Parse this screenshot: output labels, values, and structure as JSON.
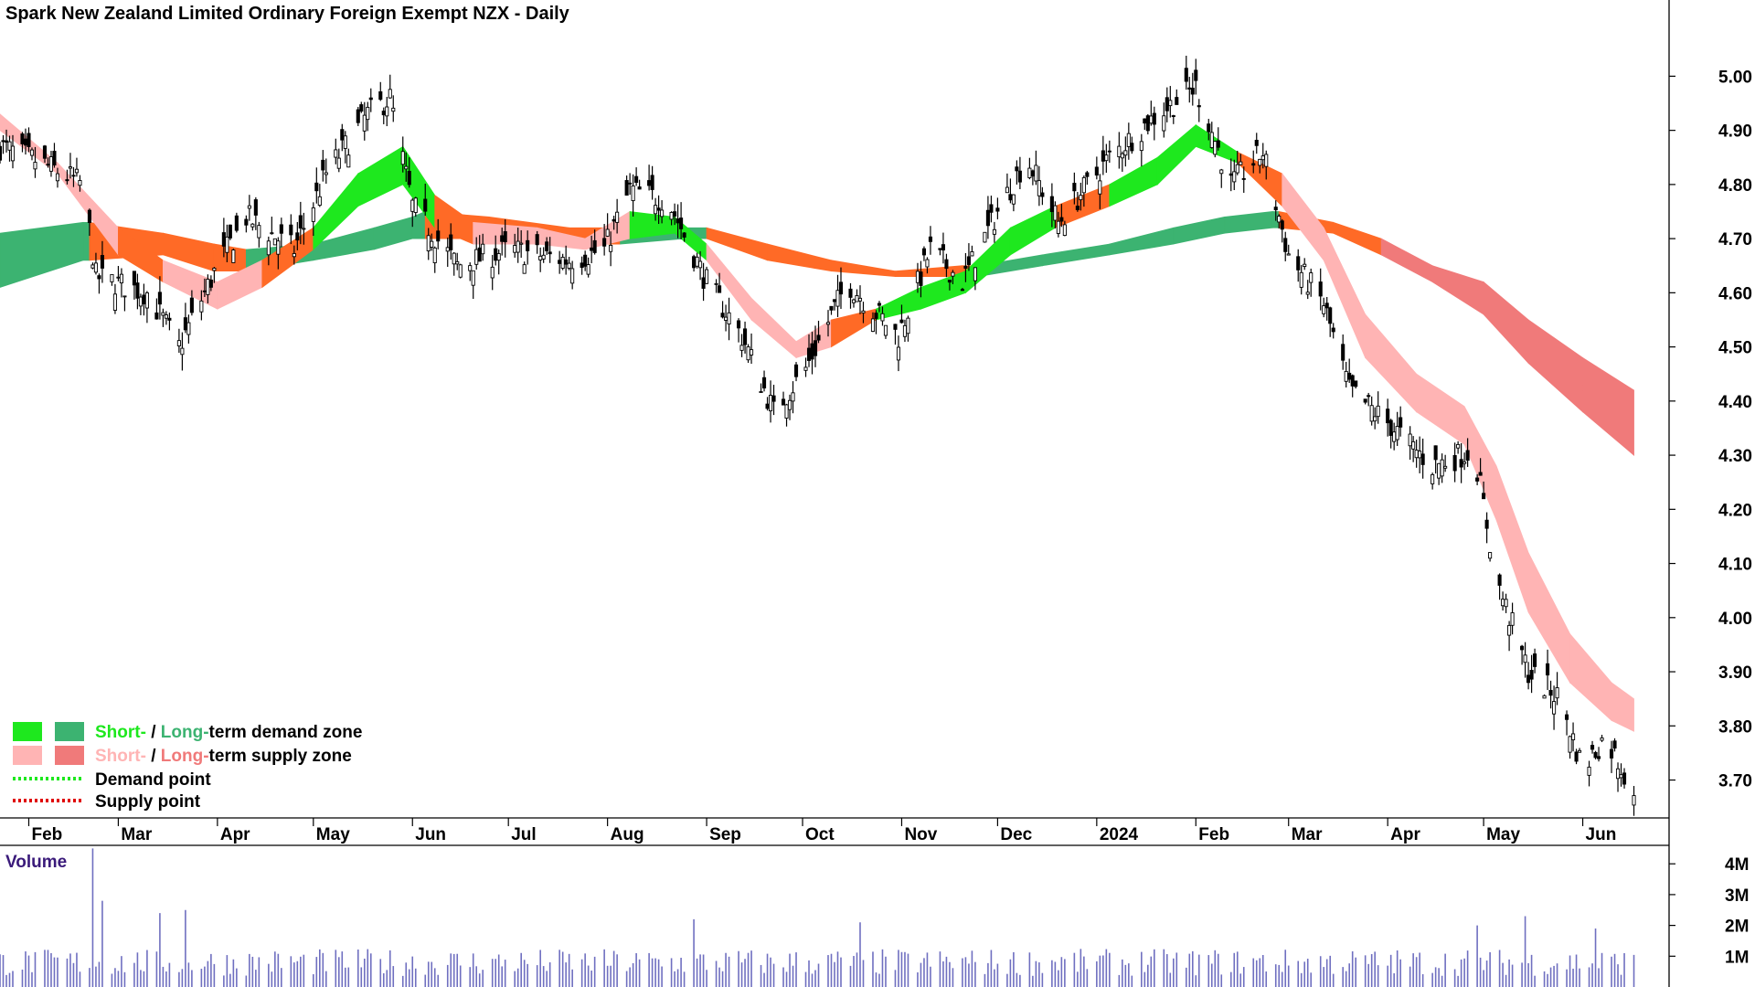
{
  "chart_data": {
    "type": "candlestick",
    "title": "Spark New Zealand Limited Ordinary Foreign Exempt NZX - Daily",
    "price_axis": {
      "min": 3.63,
      "max": 5.08,
      "ticks": [
        5.0,
        4.9,
        4.8,
        4.7,
        4.6,
        4.5,
        4.4,
        4.3,
        4.2,
        4.1,
        4.0,
        3.9,
        3.8,
        3.7
      ],
      "tick_labels": [
        "5.00",
        "4.90",
        "4.80",
        "4.70",
        "4.60",
        "4.50",
        "4.40",
        "4.30",
        "4.20",
        "4.10",
        "4.00",
        "3.90",
        "3.80",
        "3.70"
      ]
    },
    "time_axis": {
      "start": "2023-01-23",
      "end": "2024-06-28",
      "last_bar": "2024-06-17",
      "months": [
        {
          "label": "Feb",
          "date": "2023-02-01"
        },
        {
          "label": "Mar",
          "date": "2023-03-01"
        },
        {
          "label": "Apr",
          "date": "2023-04-01"
        },
        {
          "label": "May",
          "date": "2023-05-01"
        },
        {
          "label": "Jun",
          "date": "2023-06-01"
        },
        {
          "label": "Jul",
          "date": "2023-07-01"
        },
        {
          "label": "Aug",
          "date": "2023-08-01"
        },
        {
          "label": "Sep",
          "date": "2023-09-01"
        },
        {
          "label": "Oct",
          "date": "2023-10-01"
        },
        {
          "label": "Nov",
          "date": "2023-11-01"
        },
        {
          "label": "Dec",
          "date": "2023-12-01"
        },
        {
          "label": "2024",
          "date": "2024-01-01"
        },
        {
          "label": "Feb",
          "date": "2024-02-01"
        },
        {
          "label": "Mar",
          "date": "2024-03-01"
        },
        {
          "label": "Apr",
          "date": "2024-04-01"
        },
        {
          "label": "May",
          "date": "2024-05-01"
        },
        {
          "label": "Jun",
          "date": "2024-06-01"
        }
      ]
    },
    "price_path": [
      {
        "date": "2023-01-23",
        "price": 4.87
      },
      {
        "date": "2023-02-05",
        "price": 4.84
      },
      {
        "date": "2023-02-18",
        "price": 4.8
      },
      {
        "date": "2023-02-22",
        "price": 4.63
      },
      {
        "date": "2023-03-10",
        "price": 4.6
      },
      {
        "date": "2023-03-20",
        "price": 4.5
      },
      {
        "date": "2023-04-01",
        "price": 4.65
      },
      {
        "date": "2023-04-10",
        "price": 4.74
      },
      {
        "date": "2023-04-25",
        "price": 4.68
      },
      {
        "date": "2023-05-05",
        "price": 4.82
      },
      {
        "date": "2023-05-18",
        "price": 4.93
      },
      {
        "date": "2023-05-25",
        "price": 4.96
      },
      {
        "date": "2023-06-01",
        "price": 4.76
      },
      {
        "date": "2023-06-15",
        "price": 4.65
      },
      {
        "date": "2023-07-01",
        "price": 4.68
      },
      {
        "date": "2023-07-20",
        "price": 4.66
      },
      {
        "date": "2023-07-31",
        "price": 4.68
      },
      {
        "date": "2023-08-08",
        "price": 4.79
      },
      {
        "date": "2023-08-20",
        "price": 4.77
      },
      {
        "date": "2023-09-01",
        "price": 4.62
      },
      {
        "date": "2023-09-12",
        "price": 4.52
      },
      {
        "date": "2023-09-22",
        "price": 4.38
      },
      {
        "date": "2023-10-02",
        "price": 4.46
      },
      {
        "date": "2023-10-15",
        "price": 4.62
      },
      {
        "date": "2023-10-31",
        "price": 4.52
      },
      {
        "date": "2023-11-10",
        "price": 4.68
      },
      {
        "date": "2023-11-20",
        "price": 4.62
      },
      {
        "date": "2023-12-01",
        "price": 4.75
      },
      {
        "date": "2023-12-10",
        "price": 4.85
      },
      {
        "date": "2023-12-20",
        "price": 4.73
      },
      {
        "date": "2024-01-05",
        "price": 4.85
      },
      {
        "date": "2024-01-20",
        "price": 4.93
      },
      {
        "date": "2024-02-01",
        "price": 4.98
      },
      {
        "date": "2024-02-12",
        "price": 4.8
      },
      {
        "date": "2024-02-22",
        "price": 4.86
      },
      {
        "date": "2024-03-01",
        "price": 4.67
      },
      {
        "date": "2024-03-12",
        "price": 4.58
      },
      {
        "date": "2024-03-20",
        "price": 4.42
      },
      {
        "date": "2024-04-01",
        "price": 4.36
      },
      {
        "date": "2024-04-15",
        "price": 4.28
      },
      {
        "date": "2024-04-28",
        "price": 4.31
      },
      {
        "date": "2024-05-05",
        "price": 4.07
      },
      {
        "date": "2024-05-15",
        "price": 3.9
      },
      {
        "date": "2024-05-25",
        "price": 3.85
      },
      {
        "date": "2024-06-01",
        "price": 3.72
      },
      {
        "date": "2024-06-08",
        "price": 3.78
      },
      {
        "date": "2024-06-17",
        "price": 3.68
      }
    ],
    "short_term_zone": [
      {
        "date": "2023-01-23",
        "upper": 4.93,
        "lower": 4.9,
        "state": "supply-weak"
      },
      {
        "date": "2023-02-10",
        "upper": 4.84,
        "lower": 4.82,
        "state": "supply-weak"
      },
      {
        "date": "2023-03-01",
        "upper": 4.72,
        "lower": 4.67,
        "state": "supply-short"
      },
      {
        "date": "2023-03-15",
        "upper": 4.66,
        "lower": 4.62,
        "state": "supply-weak"
      },
      {
        "date": "2023-04-01",
        "upper": 4.62,
        "lower": 4.57,
        "state": "supply-weak"
      },
      {
        "date": "2023-04-15",
        "upper": 4.66,
        "lower": 4.61,
        "state": "demand-weak"
      },
      {
        "date": "2023-05-01",
        "upper": 4.72,
        "lower": 4.68,
        "state": "demand-short"
      },
      {
        "date": "2023-05-15",
        "upper": 4.82,
        "lower": 4.76,
        "state": "demand-short"
      },
      {
        "date": "2023-05-29",
        "upper": 4.87,
        "lower": 4.8,
        "state": "demand-short"
      },
      {
        "date": "2023-06-08",
        "upper": 4.78,
        "lower": 4.72,
        "state": "supply-short"
      },
      {
        "date": "2023-06-20",
        "upper": 4.73,
        "lower": 4.69,
        "state": "supply-weak"
      },
      {
        "date": "2023-07-10",
        "upper": 4.72,
        "lower": 4.69,
        "state": "supply-weak"
      },
      {
        "date": "2023-07-25",
        "upper": 4.7,
        "lower": 4.68,
        "state": "supply-weak"
      },
      {
        "date": "2023-08-08",
        "upper": 4.75,
        "lower": 4.7,
        "state": "demand-short"
      },
      {
        "date": "2023-08-22",
        "upper": 4.74,
        "lower": 4.71,
        "state": "demand-short"
      },
      {
        "date": "2023-09-01",
        "upper": 4.69,
        "lower": 4.66,
        "state": "supply-weak"
      },
      {
        "date": "2023-09-15",
        "upper": 4.59,
        "lower": 4.55,
        "state": "supply-weak"
      },
      {
        "date": "2023-09-29",
        "upper": 4.51,
        "lower": 4.48,
        "state": "supply-weak"
      },
      {
        "date": "2023-10-10",
        "upper": 4.55,
        "lower": 4.5,
        "state": "demand-weak"
      },
      {
        "date": "2023-10-24",
        "upper": 4.57,
        "lower": 4.55,
        "state": "demand-short"
      },
      {
        "date": "2023-11-07",
        "upper": 4.61,
        "lower": 4.57,
        "state": "demand-short"
      },
      {
        "date": "2023-11-21",
        "upper": 4.64,
        "lower": 4.6,
        "state": "demand-short"
      },
      {
        "date": "2023-12-05",
        "upper": 4.72,
        "lower": 4.67,
        "state": "demand-short"
      },
      {
        "date": "2023-12-19",
        "upper": 4.76,
        "lower": 4.72,
        "state": "demand-weak"
      },
      {
        "date": "2024-01-05",
        "upper": 4.8,
        "lower": 4.76,
        "state": "demand-short"
      },
      {
        "date": "2024-01-20",
        "upper": 4.85,
        "lower": 4.8,
        "state": "demand-short"
      },
      {
        "date": "2024-02-01",
        "upper": 4.91,
        "lower": 4.87,
        "state": "demand-short"
      },
      {
        "date": "2024-02-14",
        "upper": 4.86,
        "lower": 4.84,
        "state": "supply-short"
      },
      {
        "date": "2024-02-28",
        "upper": 4.82,
        "lower": 4.76,
        "state": "supply-weak"
      },
      {
        "date": "2024-03-12",
        "upper": 4.72,
        "lower": 4.66,
        "state": "supply-weak"
      },
      {
        "date": "2024-03-25",
        "upper": 4.56,
        "lower": 4.48,
        "state": "supply-weak"
      },
      {
        "date": "2024-04-10",
        "upper": 4.45,
        "lower": 4.38,
        "state": "supply-weak"
      },
      {
        "date": "2024-04-25",
        "upper": 4.39,
        "lower": 4.32,
        "state": "supply-weak"
      },
      {
        "date": "2024-05-05",
        "upper": 4.28,
        "lower": 4.18,
        "state": "supply-weak"
      },
      {
        "date": "2024-05-15",
        "upper": 4.12,
        "lower": 4.01,
        "state": "supply-weak"
      },
      {
        "date": "2024-05-28",
        "upper": 3.97,
        "lower": 3.88,
        "state": "supply-weak"
      },
      {
        "date": "2024-06-10",
        "upper": 3.88,
        "lower": 3.81,
        "state": "supply-weak"
      },
      {
        "date": "2024-06-17",
        "upper": 3.85,
        "lower": 3.79,
        "state": "supply-weak"
      }
    ],
    "long_term_zone": [
      {
        "date": "2023-01-23",
        "upper": 4.71,
        "lower": 4.61,
        "state": "demand-long"
      },
      {
        "date": "2023-02-18",
        "upper": 4.73,
        "lower": 4.66,
        "state": "demand-long"
      },
      {
        "date": "2023-02-20",
        "upper": 4.73,
        "lower": 4.66,
        "state": "supply-short"
      },
      {
        "date": "2023-03-15",
        "upper": 4.71,
        "lower": 4.67,
        "state": "supply-short"
      },
      {
        "date": "2023-03-31",
        "upper": 4.69,
        "lower": 4.64,
        "state": "supply-short"
      },
      {
        "date": "2023-04-10",
        "upper": 4.68,
        "lower": 4.64,
        "state": "demand-long"
      },
      {
        "date": "2023-05-01",
        "upper": 4.69,
        "lower": 4.66,
        "state": "demand-long"
      },
      {
        "date": "2023-05-20",
        "upper": 4.72,
        "lower": 4.68,
        "state": "demand-long"
      },
      {
        "date": "2023-06-01",
        "upper": 4.74,
        "lower": 4.7,
        "state": "demand-long"
      },
      {
        "date": "2023-06-05",
        "upper": 4.75,
        "lower": 4.7,
        "state": "supply-short"
      },
      {
        "date": "2023-06-25",
        "upper": 4.74,
        "lower": 4.7,
        "state": "supply-short"
      },
      {
        "date": "2023-07-20",
        "upper": 4.72,
        "lower": 4.69,
        "state": "supply-short"
      },
      {
        "date": "2023-08-05",
        "upper": 4.72,
        "lower": 4.69,
        "state": "demand-long"
      },
      {
        "date": "2023-08-25",
        "upper": 4.72,
        "lower": 4.7,
        "state": "demand-long"
      },
      {
        "date": "2023-09-01",
        "upper": 4.72,
        "lower": 4.7,
        "state": "supply-short"
      },
      {
        "date": "2023-09-20",
        "upper": 4.69,
        "lower": 4.66,
        "state": "supply-short"
      },
      {
        "date": "2023-10-10",
        "upper": 4.66,
        "lower": 4.64,
        "state": "supply-short"
      },
      {
        "date": "2023-10-30",
        "upper": 4.64,
        "lower": 4.63,
        "state": "supply-short"
      },
      {
        "date": "2023-11-20",
        "upper": 4.65,
        "lower": 4.63,
        "state": "supply-short"
      },
      {
        "date": "2023-11-25",
        "upper": 4.65,
        "lower": 4.63,
        "state": "demand-long"
      },
      {
        "date": "2023-12-15",
        "upper": 4.67,
        "lower": 4.65,
        "state": "demand-long"
      },
      {
        "date": "2024-01-05",
        "upper": 4.69,
        "lower": 4.67,
        "state": "demand-long"
      },
      {
        "date": "2024-01-25",
        "upper": 4.72,
        "lower": 4.69,
        "state": "demand-long"
      },
      {
        "date": "2024-02-10",
        "upper": 4.74,
        "lower": 4.71,
        "state": "demand-long"
      },
      {
        "date": "2024-02-25",
        "upper": 4.75,
        "lower": 4.72,
        "state": "demand-long"
      },
      {
        "date": "2024-02-27",
        "upper": 4.75,
        "lower": 4.72,
        "state": "supply-short"
      },
      {
        "date": "2024-03-15",
        "upper": 4.73,
        "lower": 4.71,
        "state": "supply-short"
      },
      {
        "date": "2024-03-30",
        "upper": 4.7,
        "lower": 4.67,
        "state": "supply-long"
      },
      {
        "date": "2024-04-15",
        "upper": 4.65,
        "lower": 4.62,
        "state": "supply-long"
      },
      {
        "date": "2024-05-01",
        "upper": 4.62,
        "lower": 4.56,
        "state": "supply-long"
      },
      {
        "date": "2024-05-15",
        "upper": 4.55,
        "lower": 4.47,
        "state": "supply-long"
      },
      {
        "date": "2024-06-01",
        "upper": 4.48,
        "lower": 4.38,
        "state": "supply-long"
      },
      {
        "date": "2024-06-17",
        "upper": 4.42,
        "lower": 4.3,
        "state": "supply-long"
      }
    ],
    "zone_colors": {
      "demand-short": "#1ee81e",
      "demand-long": "#3cb371",
      "supply-short": "#ff6a26",
      "supply-weak": "#ffb4b4",
      "supply-long": "#f07a7a",
      "demand-weak": "#ff6a26"
    },
    "volume": {
      "label": "Volume",
      "max": 4600000,
      "ticks": [
        4000000,
        3000000,
        2000000,
        1000000
      ],
      "tick_labels": [
        "4M",
        "3M",
        "2M",
        "1M"
      ],
      "base_level": 800000,
      "spikes": [
        {
          "date": "2023-02-21",
          "value": 4500000
        },
        {
          "date": "2023-02-24",
          "value": 2800000
        },
        {
          "date": "2023-03-14",
          "value": 2400000
        },
        {
          "date": "2023-03-22",
          "value": 2500000
        },
        {
          "date": "2023-08-28",
          "value": 2200000
        },
        {
          "date": "2023-10-19",
          "value": 2100000
        },
        {
          "date": "2024-04-29",
          "value": 2000000
        },
        {
          "date": "2024-05-14",
          "value": 2300000
        },
        {
          "date": "2024-06-05",
          "value": 1900000
        }
      ],
      "bar_color": "#6f6fc0"
    },
    "legend": [
      {
        "swatches": [
          "#1ee81e",
          "#3cb371"
        ],
        "parts": [
          {
            "text": "Short-",
            "color": "#1ee81e"
          },
          {
            "text": " / ",
            "color": "#000000"
          },
          {
            "text": "Long-",
            "color": "#3cb371"
          },
          {
            "text": "term demand zone",
            "color": "#000000"
          }
        ]
      },
      {
        "swatches": [
          "#ffb4b4",
          "#f07a7a"
        ],
        "parts": [
          {
            "text": "Short-",
            "color": "#ffb4b4"
          },
          {
            "text": " / ",
            "color": "#000000"
          },
          {
            "text": "Long-",
            "color": "#f07a7a"
          },
          {
            "text": "term supply zone",
            "color": "#000000"
          }
        ]
      },
      {
        "dotted": "#1ee81e",
        "parts": [
          {
            "text": "Demand point",
            "color": "#000000"
          }
        ]
      },
      {
        "dotted": "#e00000",
        "parts": [
          {
            "text": "Supply point",
            "color": "#000000"
          }
        ]
      }
    ]
  }
}
